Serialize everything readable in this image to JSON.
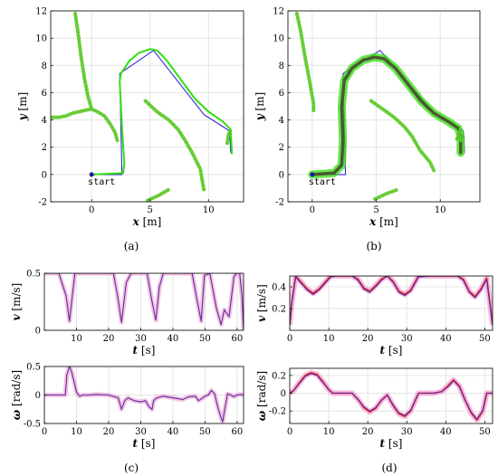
{
  "colors": {
    "path_blue": "#2b2bd6",
    "trajectory_green": "#33dd11",
    "obstacle_green": "#55cc22",
    "obstacle_point": "#9a9a33",
    "band_dark": "#4a5a2e",
    "signal_purple": "#5a2fa0",
    "signal_band": "#f2a6d6",
    "signal_red": "#e01e1e",
    "grid": "#e4e4e4",
    "start_marker": "#1a1aa0"
  },
  "panel_labels": [
    "(a)",
    "(b)",
    "(c)",
    "(d)"
  ],
  "chart_data": [
    {
      "panel": "(a)",
      "type": "line",
      "xlabel": "x [m]",
      "ylabel": "y [m]",
      "xlim": [
        -3.5,
        13
      ],
      "ylim": [
        -2,
        12
      ],
      "xticks": [
        0,
        5,
        10
      ],
      "yticks": [
        -2,
        0,
        2,
        4,
        6,
        8,
        10,
        12
      ],
      "grid": true,
      "annotations": [
        {
          "text": "start",
          "x": 0,
          "y": 0
        }
      ],
      "series": [
        {
          "role": "path",
          "color": "#2b2bd6",
          "points": [
            [
              0,
              0
            ],
            [
              2.6,
              0
            ],
            [
              2.4,
              7.4
            ],
            [
              5.3,
              9.1
            ],
            [
              9.6,
              4.4
            ],
            [
              11.8,
              3.2
            ],
            [
              11.9,
              1.6
            ]
          ]
        },
        {
          "role": "trajectory",
          "color": "#33dd11",
          "points": [
            [
              0,
              0
            ],
            [
              2.7,
              0.1
            ],
            [
              2.8,
              0.8
            ],
            [
              2.6,
              3.5
            ],
            [
              2.4,
              6.8
            ],
            [
              2.5,
              7.4
            ],
            [
              3.2,
              8.3
            ],
            [
              4.0,
              8.9
            ],
            [
              5.0,
              9.2
            ],
            [
              5.6,
              9.1
            ],
            [
              6.4,
              8.4
            ],
            [
              7.6,
              7.0
            ],
            [
              8.8,
              5.6
            ],
            [
              10.0,
              4.6
            ],
            [
              11.2,
              3.9
            ],
            [
              11.9,
              3.3
            ],
            [
              12.0,
              1.5
            ]
          ]
        },
        {
          "role": "scan",
          "color": "#55cc22",
          "points": [
            [
              -1.4,
              11.8
            ],
            [
              -1.1,
              10
            ],
            [
              -0.9,
              8.6
            ],
            [
              -0.6,
              7
            ],
            [
              -0.3,
              5.7
            ],
            [
              0,
              4.8
            ]
          ]
        },
        {
          "role": "scan",
          "color": "#55cc22",
          "points": [
            [
              4.6,
              5.4
            ],
            [
              5.6,
              4.6
            ],
            [
              6.6,
              4
            ],
            [
              7.4,
              3.3
            ],
            [
              8,
              2.5
            ],
            [
              8.6,
              1.6
            ],
            [
              9.3,
              0.4
            ],
            [
              9.6,
              -1.1
            ]
          ]
        },
        {
          "role": "scan",
          "color": "#55cc22",
          "points": [
            [
              4.8,
              -1.9
            ],
            [
              5.8,
              -1.5
            ],
            [
              6.6,
              -1.1
            ]
          ]
        },
        {
          "role": "scan",
          "color": "#55cc22",
          "points": [
            [
              11.6,
              2.3
            ],
            [
              11.7,
              2.9
            ],
            [
              11.9,
              3.3
            ]
          ]
        },
        {
          "role": "scan",
          "color": "#55cc22",
          "points": [
            [
              -3.4,
              4.2
            ],
            [
              -2.8,
              4.2
            ],
            [
              -2.2,
              4.3
            ],
            [
              -1.6,
              4.5
            ],
            [
              -1.1,
              4.6
            ],
            [
              -0.6,
              4.7
            ],
            [
              0,
              4.8
            ],
            [
              0.5,
              4.6
            ],
            [
              1.1,
              4.3
            ],
            [
              1.6,
              3.7
            ],
            [
              2.0,
              3.1
            ],
            [
              2.2,
              2.5
            ]
          ]
        }
      ]
    },
    {
      "panel": "(b)",
      "type": "line",
      "xlabel": "x [m]",
      "ylabel": "y [m]",
      "xlim": [
        -1.9,
        13.1
      ],
      "ylim": [
        -2,
        12
      ],
      "xticks": [
        0,
        5,
        10
      ],
      "yticks": [
        -2,
        0,
        2,
        4,
        6,
        8,
        10,
        12
      ],
      "grid": true,
      "annotations": [
        {
          "text": "start",
          "x": 0,
          "y": 0
        }
      ],
      "series": [
        {
          "role": "path",
          "color": "#2b2bd6",
          "points": [
            [
              0,
              0
            ],
            [
              2.6,
              0
            ],
            [
              2.4,
              7.4
            ],
            [
              5.3,
              9.1
            ],
            [
              9.6,
              4.4
            ],
            [
              11.8,
              3.2
            ],
            [
              11.9,
              1.6
            ]
          ]
        },
        {
          "role": "trajectory",
          "color": "#4a5a2e",
          "points": [
            [
              0,
              0
            ],
            [
              1.7,
              0.1
            ],
            [
              2.3,
              0.7
            ],
            [
              2.4,
              2.5
            ],
            [
              2.3,
              5
            ],
            [
              2.5,
              6.9
            ],
            [
              3.1,
              7.8
            ],
            [
              4.0,
              8.4
            ],
            [
              4.9,
              8.6
            ],
            [
              5.6,
              8.5
            ],
            [
              6.5,
              7.8
            ],
            [
              7.5,
              6.6
            ],
            [
              8.5,
              5.4
            ],
            [
              9.5,
              4.5
            ],
            [
              10.6,
              3.9
            ],
            [
              11.4,
              3.4
            ],
            [
              11.6,
              2.8
            ],
            [
              11.6,
              1.6
            ]
          ]
        },
        {
          "role": "scan",
          "color": "#55cc22",
          "points": [
            [
              -1.2,
              11.8
            ],
            [
              -0.9,
              10.5
            ],
            [
              -0.6,
              8.8
            ],
            [
              -0.2,
              6.8
            ],
            [
              0.1,
              5.2
            ],
            [
              0.1,
              4.7
            ]
          ]
        },
        {
          "role": "scan",
          "color": "#55cc22",
          "points": [
            [
              4.6,
              5.4
            ],
            [
              5.5,
              4.8
            ],
            [
              6.4,
              4.2
            ],
            [
              7.2,
              3.5
            ],
            [
              7.8,
              2.8
            ],
            [
              8.4,
              1.8
            ],
            [
              9.2,
              0.9
            ],
            [
              9.5,
              0.3
            ]
          ]
        },
        {
          "role": "scan",
          "color": "#55cc22",
          "points": [
            [
              4.9,
              -1.8
            ],
            [
              5.8,
              -1.4
            ],
            [
              6.7,
              -1.1
            ]
          ]
        },
        {
          "role": "scan",
          "color": "#55cc22",
          "points": [
            [
              11.3,
              2.6
            ],
            [
              11.5,
              3.1
            ],
            [
              11.6,
              2.5
            ]
          ]
        }
      ]
    },
    {
      "panel": "(c) top",
      "type": "line",
      "xlabel": "t [s]",
      "ylabel": "v [m/s]",
      "xlim": [
        0,
        62
      ],
      "ylim": [
        0,
        0.5
      ],
      "xticks": [
        10,
        20,
        30,
        40,
        50,
        60
      ],
      "yticks": [
        0,
        0.5
      ],
      "grid": true,
      "series": [
        {
          "role": "measured",
          "color": "#5a2fa0",
          "x": [
            0,
            1.8,
            4.5,
            6.8,
            7.8,
            9.5,
            11.5,
            12.5,
            21.5,
            22.8,
            24,
            25.5,
            27,
            28.2,
            32,
            33.3,
            34.7,
            35.8,
            37,
            38.2,
            44.3,
            46,
            47.3,
            48.8,
            49.8,
            51.5,
            52.5,
            53.5,
            55,
            56,
            57.5,
            59,
            59.8,
            60.8,
            61.5,
            62
          ],
          "y": [
            0.5,
            0.5,
            0.5,
            0.3,
            0.08,
            0.5,
            0.5,
            0.5,
            0.5,
            0.3,
            0.07,
            0.42,
            0.5,
            0.5,
            0.5,
            0.28,
            0.09,
            0.38,
            0.5,
            0.5,
            0.5,
            0.5,
            0.3,
            0.08,
            0.48,
            0.5,
            0.35,
            0.2,
            0.05,
            0.18,
            0.12,
            0.47,
            0.5,
            0.5,
            0.3,
            0.0
          ]
        }
      ]
    },
    {
      "panel": "(c) bottom",
      "type": "line",
      "xlabel": "t [s]",
      "ylabel": "ω [rad/s]",
      "xlim": [
        0,
        62
      ],
      "ylim": [
        -0.5,
        0.5
      ],
      "xticks": [
        0,
        10,
        20,
        30,
        40,
        50,
        60
      ],
      "yticks": [
        -0.5,
        0,
        0.5
      ],
      "grid": true,
      "series": [
        {
          "role": "measured",
          "color": "#5a2fa0",
          "x": [
            0,
            6.5,
            7,
            7.8,
            8.5,
            9.2,
            10,
            11,
            12,
            14,
            16,
            20,
            23,
            24,
            24.5,
            25,
            26,
            28,
            30,
            31.5,
            32.5,
            33.5,
            34,
            35,
            37,
            40,
            43,
            45,
            47,
            48,
            49,
            50,
            51,
            52,
            53,
            54,
            55,
            55.5,
            56,
            57,
            58,
            59,
            60,
            61,
            62
          ],
          "y": [
            0,
            0,
            0.35,
            0.5,
            0.4,
            0.25,
            0.05,
            -0.02,
            0,
            0,
            0.01,
            0,
            -0.05,
            -0.25,
            -0.18,
            -0.1,
            -0.05,
            -0.1,
            -0.12,
            -0.1,
            -0.2,
            -0.25,
            -0.1,
            -0.05,
            -0.02,
            -0.05,
            -0.08,
            -0.03,
            -0.02,
            -0.1,
            -0.06,
            -0.02,
            0.0,
            0.08,
            0.02,
            -0.22,
            -0.4,
            -0.47,
            -0.3,
            0.02,
            0.0,
            -0.03,
            0.0,
            0.01,
            0.0
          ]
        }
      ]
    },
    {
      "panel": "(d) top",
      "type": "line",
      "xlabel": "t [s]",
      "ylabel": "v [m/s]",
      "xlim": [
        0,
        52
      ],
      "ylim": [
        0,
        0.5
      ],
      "xticks": [
        0,
        10,
        20,
        30,
        40,
        50
      ],
      "yticks": [
        0.2,
        0.4
      ],
      "grid": true,
      "series": [
        {
          "role": "reference",
          "color": "#e01e1e",
          "x": [
            0,
            0.5,
            1.5,
            3,
            4.5,
            6,
            7.5,
            9,
            10.5,
            12,
            14,
            16,
            17.5,
            19,
            20.5,
            22,
            23.5,
            25,
            26.5,
            28,
            29.5,
            31,
            33,
            36,
            40,
            43,
            44.5,
            46,
            47.5,
            49,
            50.5,
            51.5,
            52
          ],
          "y": [
            0.05,
            0.25,
            0.5,
            0.44,
            0.38,
            0.34,
            0.38,
            0.44,
            0.5,
            0.5,
            0.5,
            0.5,
            0.47,
            0.39,
            0.36,
            0.41,
            0.47,
            0.5,
            0.45,
            0.36,
            0.33,
            0.37,
            0.5,
            0.5,
            0.5,
            0.5,
            0.47,
            0.36,
            0.31,
            0.38,
            0.48,
            0.2,
            0.05
          ]
        },
        {
          "role": "measured",
          "color": "#5a2fa0",
          "x": [
            0,
            0.5,
            1.5,
            3,
            4.5,
            6,
            7.5,
            9,
            10.5,
            12,
            14,
            16,
            17.5,
            19,
            20.5,
            22,
            23.5,
            25,
            26.5,
            28,
            29.5,
            31,
            33,
            36,
            40,
            43,
            44.5,
            46,
            47.5,
            49,
            50.5,
            51.5,
            52
          ],
          "y": [
            0.05,
            0.24,
            0.49,
            0.43,
            0.37,
            0.33,
            0.37,
            0.43,
            0.49,
            0.5,
            0.5,
            0.5,
            0.46,
            0.38,
            0.35,
            0.4,
            0.46,
            0.5,
            0.44,
            0.35,
            0.32,
            0.36,
            0.49,
            0.5,
            0.5,
            0.5,
            0.46,
            0.35,
            0.3,
            0.37,
            0.47,
            0.19,
            0.05
          ]
        }
      ]
    },
    {
      "panel": "(d) bottom",
      "type": "line",
      "xlabel": "t [s]",
      "ylabel": "ω [rad/s]",
      "xlim": [
        0,
        52
      ],
      "ylim": [
        -0.34,
        0.28
      ],
      "xticks": [
        0,
        10,
        20,
        30,
        40,
        50
      ],
      "yticks": [
        -0.2,
        0,
        0.2
      ],
      "grid": true,
      "series": [
        {
          "role": "reference",
          "color": "#e01e1e",
          "x": [
            0,
            1,
            2.5,
            4,
            5.5,
            7,
            8.5,
            10,
            11,
            12,
            16,
            17.5,
            19,
            20.5,
            22,
            23.5,
            25,
            26.5,
            28,
            29.5,
            31,
            33,
            37,
            39,
            40.5,
            42,
            43.5,
            45,
            46.5,
            48,
            49.5,
            50.5,
            52
          ],
          "y": [
            0,
            0.03,
            0.12,
            0.2,
            0.23,
            0.21,
            0.13,
            0.04,
            0,
            0,
            0,
            -0.07,
            -0.16,
            -0.21,
            -0.17,
            -0.08,
            -0.02,
            -0.14,
            -0.23,
            -0.26,
            -0.2,
            0,
            0,
            0.02,
            0.08,
            0.15,
            0.08,
            -0.08,
            -0.22,
            -0.3,
            -0.2,
            0,
            0
          ]
        },
        {
          "role": "measured",
          "color": "#5a2fa0",
          "x": [
            0,
            1,
            2.5,
            4,
            5.5,
            7,
            8.5,
            10,
            11,
            12,
            16,
            17.5,
            19,
            20.5,
            22,
            23.5,
            25,
            26.5,
            28,
            29.5,
            31,
            33,
            37,
            39,
            40.5,
            42,
            43.5,
            45,
            46.5,
            48,
            49.5,
            50.5,
            52
          ],
          "y": [
            0,
            0.03,
            0.11,
            0.19,
            0.22,
            0.2,
            0.12,
            0.04,
            0,
            0,
            0,
            -0.07,
            -0.15,
            -0.2,
            -0.16,
            -0.08,
            -0.02,
            -0.13,
            -0.22,
            -0.25,
            -0.19,
            0,
            0,
            0.02,
            0.07,
            0.14,
            0.07,
            -0.08,
            -0.21,
            -0.29,
            -0.19,
            0,
            0
          ]
        }
      ]
    }
  ]
}
